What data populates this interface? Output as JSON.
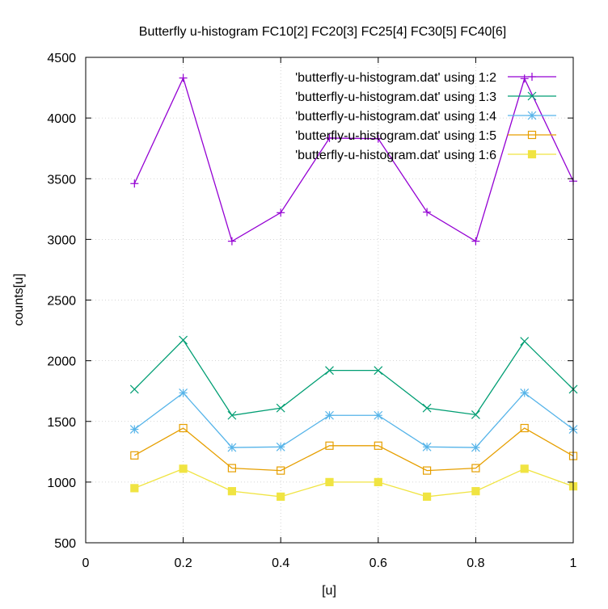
{
  "chart_data": {
    "type": "line",
    "title": "Butterfly u-histogram FC10[2] FC20[3] FC25[4] FC30[5] FC40[6]",
    "xlabel": "[u]",
    "ylabel": "counts[u]",
    "xlim": [
      0,
      1
    ],
    "ylim": [
      500,
      4500
    ],
    "xticks": [
      0,
      0.2,
      0.4,
      0.6,
      0.8,
      1
    ],
    "xtick_labels": [
      "0",
      "0.2",
      "0.4",
      "0.6",
      "0.8",
      "1"
    ],
    "yticks": [
      500,
      1000,
      1500,
      2000,
      2500,
      3000,
      3500,
      4000,
      4500
    ],
    "ytick_labels": [
      "500",
      "1000",
      "1500",
      "2000",
      "2500",
      "3000",
      "3500",
      "4000",
      "4500"
    ],
    "grid": true,
    "legend_position": "top-right",
    "x": [
      0.1,
      0.2,
      0.3,
      0.4,
      0.5,
      0.6,
      0.7,
      0.8,
      0.9,
      1.0
    ],
    "series": [
      {
        "name": "'butterfly-u-histogram.dat' using 1:2",
        "color": "#9400d3",
        "marker": "plus",
        "values": [
          3460,
          4330,
          2985,
          3220,
          3835,
          3830,
          3225,
          2985,
          4325,
          3480
        ]
      },
      {
        "name": "'butterfly-u-histogram.dat' using 1:3",
        "color": "#009e73",
        "marker": "cross",
        "values": [
          1765,
          2170,
          1550,
          1610,
          1920,
          1920,
          1610,
          1555,
          2160,
          1765
        ]
      },
      {
        "name": "'butterfly-u-histogram.dat' using 1:4",
        "color": "#56b4e9",
        "marker": "star",
        "values": [
          1435,
          1735,
          1285,
          1290,
          1550,
          1550,
          1290,
          1285,
          1735,
          1435
        ]
      },
      {
        "name": "'butterfly-u-histogram.dat' using 1:5",
        "color": "#e69f00",
        "marker": "open-square",
        "values": [
          1220,
          1445,
          1115,
          1095,
          1300,
          1300,
          1095,
          1115,
          1445,
          1215
        ]
      },
      {
        "name": "'butterfly-u-histogram.dat' using 1:6",
        "color": "#f0e442",
        "marker": "filled-square",
        "values": [
          950,
          1110,
          925,
          880,
          1000,
          1000,
          880,
          925,
          1110,
          965
        ]
      }
    ]
  }
}
